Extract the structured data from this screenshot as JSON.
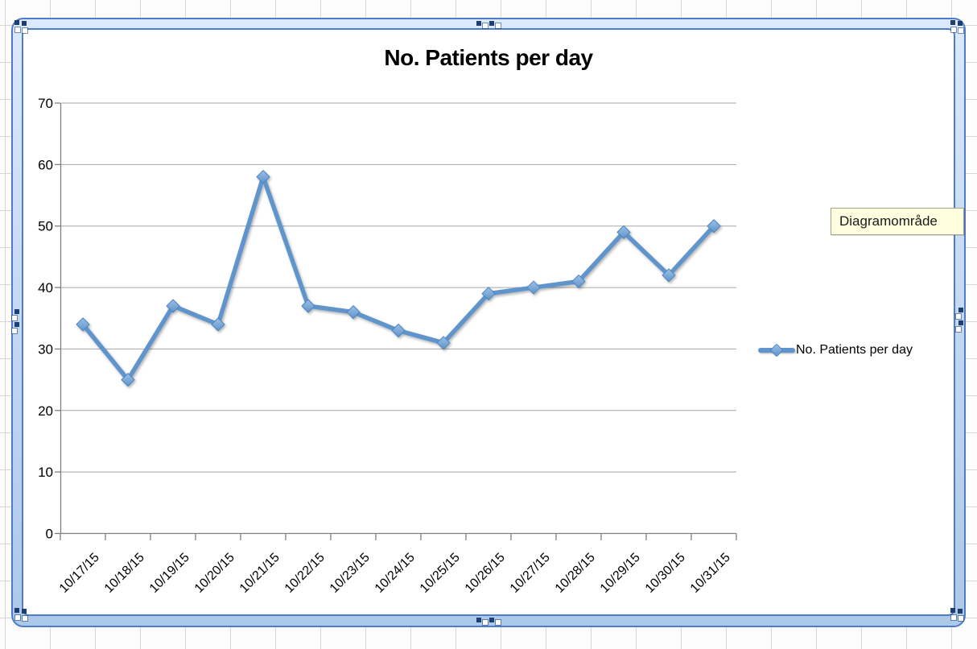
{
  "tooltip": {
    "text": "Diagramområde"
  },
  "legend": {
    "label": "No. Patients per day"
  },
  "chart_data": {
    "type": "line",
    "title": "No. Patients per day",
    "categories": [
      "10/17/15",
      "10/18/15",
      "10/19/15",
      "10/20/15",
      "10/21/15",
      "10/22/15",
      "10/23/15",
      "10/24/15",
      "10/25/15",
      "10/26/15",
      "10/27/15",
      "10/28/15",
      "10/29/15",
      "10/30/15",
      "10/31/15"
    ],
    "series": [
      {
        "name": "No. Patients per day",
        "values": [
          34,
          25,
          37,
          34,
          58,
          37,
          36,
          33,
          31,
          39,
          40,
          41,
          49,
          42,
          50
        ]
      }
    ],
    "xlabel": "",
    "ylabel": "",
    "ylim": [
      0,
      70
    ],
    "yticks": [
      0,
      10,
      20,
      30,
      40,
      50,
      60,
      70
    ],
    "grid": true,
    "legend_position": "right",
    "marker": "diamond"
  },
  "colors": {
    "series": "#6095cc",
    "marker_stroke": "#4e84bd",
    "gridline": "#a8a8a8",
    "axis": "#7f7f7f",
    "frame": "#4f7bca",
    "handle": "#1d3e6e",
    "tooltip_bg": "#ffffe0"
  }
}
